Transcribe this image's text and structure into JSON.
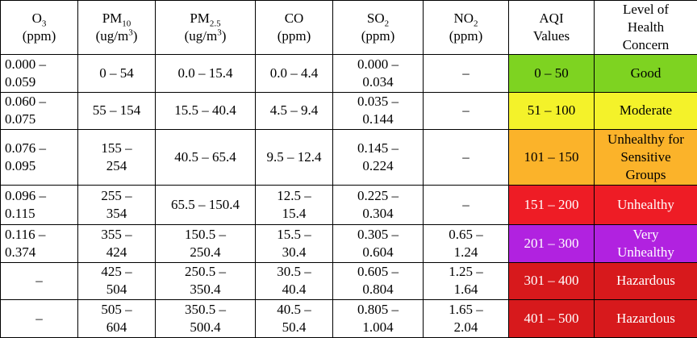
{
  "headers": [
    {
      "name": "O",
      "sub": "3",
      "sup": "",
      "unit_pre": "(ppm)",
      "unit_sup": "",
      "unit_post": ""
    },
    {
      "name": "PM",
      "sub": "10",
      "sup": "",
      "unit_pre": "(ug/m",
      "unit_sup": "3",
      "unit_post": ")"
    },
    {
      "name": "PM",
      "sub": "2.5",
      "sup": "",
      "unit_pre": "(ug/m",
      "unit_sup": "3",
      "unit_post": ")"
    },
    {
      "name": "CO",
      "sub": "",
      "sup": "",
      "unit_pre": "(ppm)",
      "unit_sup": "",
      "unit_post": ""
    },
    {
      "name": "SO",
      "sub": "2",
      "sup": "",
      "unit_pre": "(ppm)",
      "unit_sup": "",
      "unit_post": ""
    },
    {
      "name": "NO",
      "sub": "2",
      "sup": "",
      "unit_pre": "(ppm)",
      "unit_sup": "",
      "unit_post": ""
    },
    {
      "name": "AQI",
      "sub": "",
      "sup": "",
      "unit_pre": "Values",
      "unit_sup": "",
      "unit_post": ""
    },
    {
      "name": "Level of\nHealth\nConcern",
      "sub": "",
      "sup": "",
      "unit_pre": "",
      "unit_sup": "",
      "unit_post": ""
    }
  ],
  "rows": [
    {
      "o3": "0.000 –\n0.059",
      "pm10": "0 – 54",
      "pm25": "0.0 – 15.4",
      "co": "0.0 – 4.4",
      "so2": "0.000 –\n0.034",
      "no2": "–",
      "aqi": "0 – 50",
      "level": "Good",
      "color": "#7ed321",
      "text_color": "#000000"
    },
    {
      "o3": "0.060 –\n0.075",
      "pm10": "55 – 154",
      "pm25": "15.5 – 40.4",
      "co": "4.5 – 9.4",
      "so2": "0.035 –\n0.144",
      "no2": "–",
      "aqi": "51 – 100",
      "level": "Moderate",
      "color": "#f4f22a",
      "text_color": "#000000"
    },
    {
      "o3": "0.076 –\n0.095",
      "pm10": "155 –\n254",
      "pm25": "40.5 – 65.4",
      "co": "9.5 – 12.4",
      "so2": "0.145 –\n0.224",
      "no2": "–",
      "aqi": "101 – 150",
      "level": "Unhealthy for\nSensitive\nGroups",
      "color": "#fbb32a",
      "text_color": "#000000"
    },
    {
      "o3": "0.096 –\n0.115",
      "pm10": "255 –\n354",
      "pm25": "65.5 – 150.4",
      "co": "12.5 –\n15.4",
      "so2": "0.225 –\n0.304",
      "no2": "–",
      "aqi": "151 – 200",
      "level": "Unhealthy",
      "color": "#ee1c25",
      "text_color": "#ffffff"
    },
    {
      "o3": "0.116 –\n0.374",
      "pm10": "355 –\n424",
      "pm25": "150.5 –\n250.4",
      "co": "15.5 –\n30.4",
      "so2": "0.305 –\n0.604",
      "no2": "0.65 –\n1.24",
      "aqi": "201 – 300",
      "level": "Very\nUnhealthy",
      "color": "#b122e0",
      "text_color": "#ffffff"
    },
    {
      "o3": "–",
      "pm10": "425 –\n504",
      "pm25": "250.5 –\n350.4",
      "co": "30.5 –\n40.4",
      "so2": "0.605 –\n0.804",
      "no2": "1.25 –\n1.64",
      "aqi": "301 – 400",
      "level": "Hazardous",
      "color": "#d7191c",
      "text_color": "#ffffff"
    },
    {
      "o3": "–",
      "pm10": "505 –\n604",
      "pm25": "350.5 –\n500.4",
      "co": "40.5 –\n50.4",
      "so2": "0.805 –\n1.004",
      "no2": "1.65 –\n2.04",
      "aqi": "401 – 500",
      "level": "Hazardous",
      "color": "#d7191c",
      "text_color": "#ffffff"
    }
  ]
}
